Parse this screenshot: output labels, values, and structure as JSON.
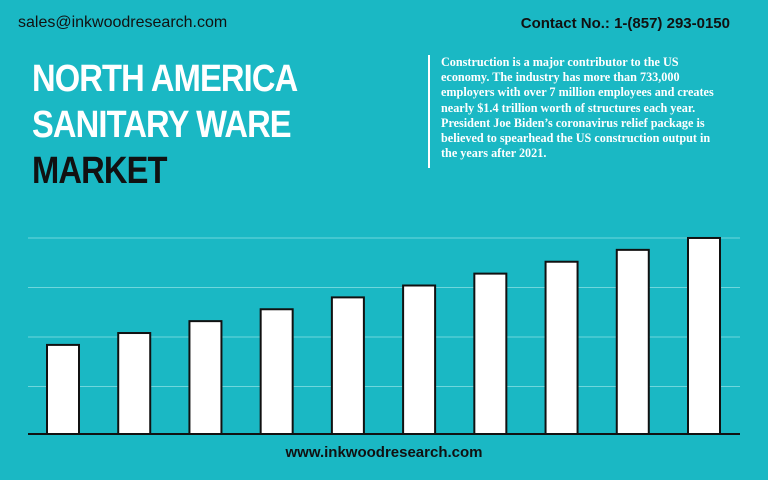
{
  "header": {
    "email": "sales@inkwoodresearch.com",
    "contact": "Contact No.: 1-(857) 293-0150"
  },
  "title": {
    "line1": "NORTH AMERICA",
    "line2": "SANITARY WARE",
    "line3": "MARKET"
  },
  "description": "Construction is a major contributor to the US economy. The industry has more than 733,000 employers with over 7 million employees and creates nearly $1.4 trillion worth of structures each year. President Joe Biden’s coronavirus relief package is believed to spearhead the US construction output in the years after 2021.",
  "footer": {
    "website": "www.inkwoodresearch.com"
  },
  "colors": {
    "background": "#1ab8c4",
    "bar_fill": "#ffffff",
    "bar_stroke": "#111111",
    "gridline": "#6fd6dc"
  },
  "chart_data": {
    "type": "bar",
    "values": [
      45,
      51,
      57,
      63,
      69,
      75,
      81,
      87,
      93,
      99
    ],
    "ylim": [
      0,
      100
    ],
    "grid": true
  }
}
